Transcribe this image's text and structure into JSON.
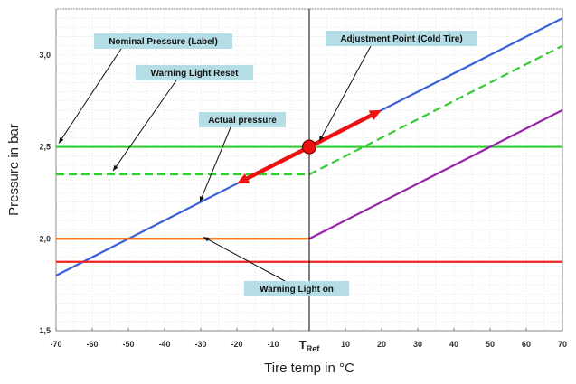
{
  "chart_data": {
    "type": "line",
    "xlabel": "Tire temp in °C",
    "ylabel": "Pressure in bar",
    "xlim": [
      -70,
      70
    ],
    "ylim": [
      1.5,
      3.25
    ],
    "x_ticks": [
      "-70",
      "-60",
      "-50",
      "-40",
      "-30",
      "-20",
      "-10",
      "",
      "10",
      "20",
      "30",
      "40",
      "50",
      "60",
      "70"
    ],
    "x_tick_values": [
      -70,
      -60,
      -50,
      -40,
      -30,
      -20,
      -10,
      0,
      10,
      20,
      30,
      40,
      50,
      60,
      70
    ],
    "y_ticks": [
      "1,5",
      "2,0",
      "2,5",
      "3,0"
    ],
    "y_tick_values": [
      1.5,
      2.0,
      2.5,
      3.0
    ],
    "tref_main": "T",
    "tref_sub": "Ref",
    "grid": true,
    "colors": {
      "actual": "#3a5fd8",
      "nominal": "#33cc33",
      "reset": "#33cc33",
      "orange": "#ff6600",
      "warning": "#ee2222",
      "purple": "#9922aa",
      "arrow": "#ee1111",
      "callout_bg": "#b5dde6"
    },
    "series": [
      {
        "key": "actual",
        "points": [
          [
            -70,
            1.8
          ],
          [
            70,
            3.2
          ]
        ]
      },
      {
        "key": "nominal",
        "points": [
          [
            -70,
            2.5
          ],
          [
            70,
            2.5
          ]
        ]
      },
      {
        "key": "reset",
        "dashed": true,
        "points": [
          [
            -70,
            2.35
          ],
          [
            0,
            2.35
          ],
          [
            70,
            3.05
          ]
        ]
      },
      {
        "key": "orange",
        "points": [
          [
            -70,
            2.0
          ],
          [
            0,
            2.0
          ]
        ]
      },
      {
        "key": "purple",
        "points": [
          [
            0,
            2.0
          ],
          [
            70,
            2.7
          ]
        ]
      },
      {
        "key": "warning",
        "points": [
          [
            -70,
            1.875
          ],
          [
            70,
            1.875
          ]
        ]
      }
    ],
    "adjustment_point": [
      0,
      2.5
    ],
    "arrow_up_to": [
      20,
      2.7
    ],
    "arrow_down_to": [
      -20,
      2.3
    ],
    "annotations": [
      {
        "text": "Nominal Pressure (Label)",
        "target": [
          -70,
          2.51
        ]
      },
      {
        "text": "Warning Light Reset",
        "target": [
          -55,
          2.36
        ]
      },
      {
        "text": "Actual pressure",
        "target": [
          -31,
          2.19
        ]
      },
      {
        "text": "Adjustment Point (Cold Tire)",
        "target": [
          2,
          2.52
        ]
      },
      {
        "text": "Warning Light on",
        "target": [
          -30,
          2.0
        ]
      }
    ]
  }
}
